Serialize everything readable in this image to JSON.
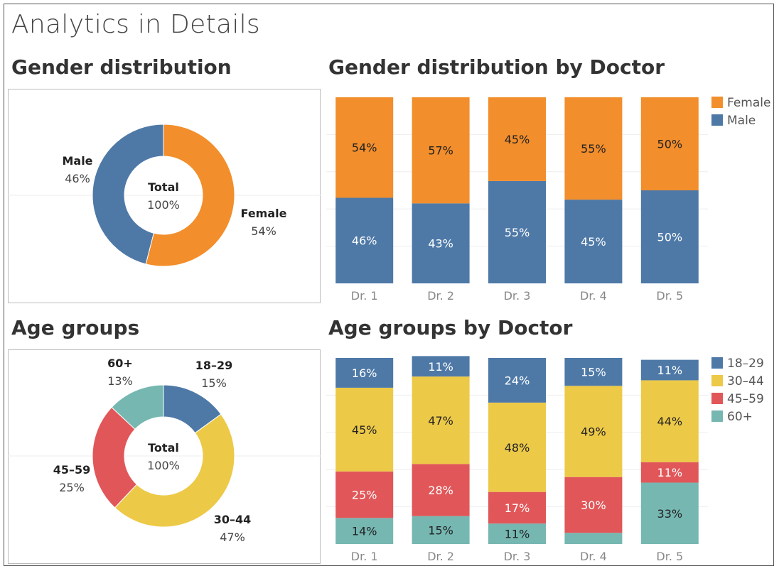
{
  "page": {
    "title": "Analytics in Details"
  },
  "colors": {
    "female": "#f28e2b",
    "male": "#4e79a7",
    "age_18_29": "#4e79a7",
    "age_30_44": "#edc948",
    "age_45_59": "#e15759",
    "age_60_plus": "#76b7b2",
    "axis_label": "#888888",
    "gridline": "#eeeeee"
  },
  "sections": {
    "gender": {
      "title": "Gender distribution"
    },
    "gender_by_doctor": {
      "title": "Gender distribution by Doctor"
    },
    "age": {
      "title": "Age groups"
    },
    "age_by_doctor": {
      "title": "Age groups by Doctor"
    }
  },
  "chart_data": [
    {
      "id": "gender_donut",
      "type": "pie",
      "donut": true,
      "center_label": {
        "title": "Total",
        "value": "100%"
      },
      "slices": [
        {
          "label": "Female",
          "value": 54,
          "display": "54%",
          "color": "#f28e2b"
        },
        {
          "label": "Male",
          "value": 46,
          "display": "46%",
          "color": "#4e79a7"
        }
      ]
    },
    {
      "id": "gender_by_doctor",
      "type": "bar",
      "stacked": true,
      "normalized": true,
      "categories": [
        "Dr. 1",
        "Dr. 2",
        "Dr. 3",
        "Dr. 4",
        "Dr. 5"
      ],
      "series": [
        {
          "name": "Male",
          "color": "#4e79a7",
          "values": [
            46,
            43,
            55,
            45,
            50
          ],
          "labels": [
            "46%",
            "43%",
            "55%",
            "45%",
            "50%"
          ]
        },
        {
          "name": "Female",
          "color": "#f28e2b",
          "values": [
            54,
            57,
            45,
            55,
            50
          ],
          "labels": [
            "54%",
            "57%",
            "45%",
            "55%",
            "50%"
          ]
        }
      ],
      "legend": [
        "Female",
        "Male"
      ],
      "legend_position": "top-right",
      "ylim": [
        0,
        100
      ]
    },
    {
      "id": "age_donut",
      "type": "pie",
      "donut": true,
      "center_label": {
        "title": "Total",
        "value": "100%"
      },
      "slices": [
        {
          "label": "18–29",
          "value": 15,
          "display": "15%",
          "color": "#4e79a7"
        },
        {
          "label": "30–44",
          "value": 47,
          "display": "47%",
          "color": "#edc948"
        },
        {
          "label": "45–59",
          "value": 25,
          "display": "25%",
          "color": "#e15759"
        },
        {
          "label": "60+",
          "value": 13,
          "display": "13%",
          "color": "#76b7b2"
        }
      ]
    },
    {
      "id": "age_by_doctor",
      "type": "bar",
      "stacked": true,
      "normalized": true,
      "categories": [
        "Dr. 1",
        "Dr. 2",
        "Dr. 3",
        "Dr. 4",
        "Dr. 5"
      ],
      "series": [
        {
          "name": "60+",
          "color": "#76b7b2",
          "values": [
            14,
            15,
            11,
            6,
            33
          ],
          "labels": [
            "14%",
            "15%",
            "11%",
            "",
            "33%"
          ]
        },
        {
          "name": "45–59",
          "color": "#e15759",
          "values": [
            25,
            28,
            17,
            30,
            11
          ],
          "labels": [
            "25%",
            "28%",
            "17%",
            "30%",
            "11%"
          ]
        },
        {
          "name": "30–44",
          "color": "#edc948",
          "values": [
            45,
            47,
            48,
            49,
            44
          ],
          "labels": [
            "45%",
            "47%",
            "48%",
            "49%",
            "44%"
          ]
        },
        {
          "name": "18–29",
          "color": "#4e79a7",
          "values": [
            16,
            11,
            24,
            15,
            11
          ],
          "labels": [
            "16%",
            "11%",
            "24%",
            "15%",
            "11%"
          ]
        }
      ],
      "legend": [
        "18–29",
        "30–44",
        "45–59",
        "60+"
      ],
      "legend_position": "top-right",
      "ylim": [
        0,
        100
      ]
    }
  ]
}
